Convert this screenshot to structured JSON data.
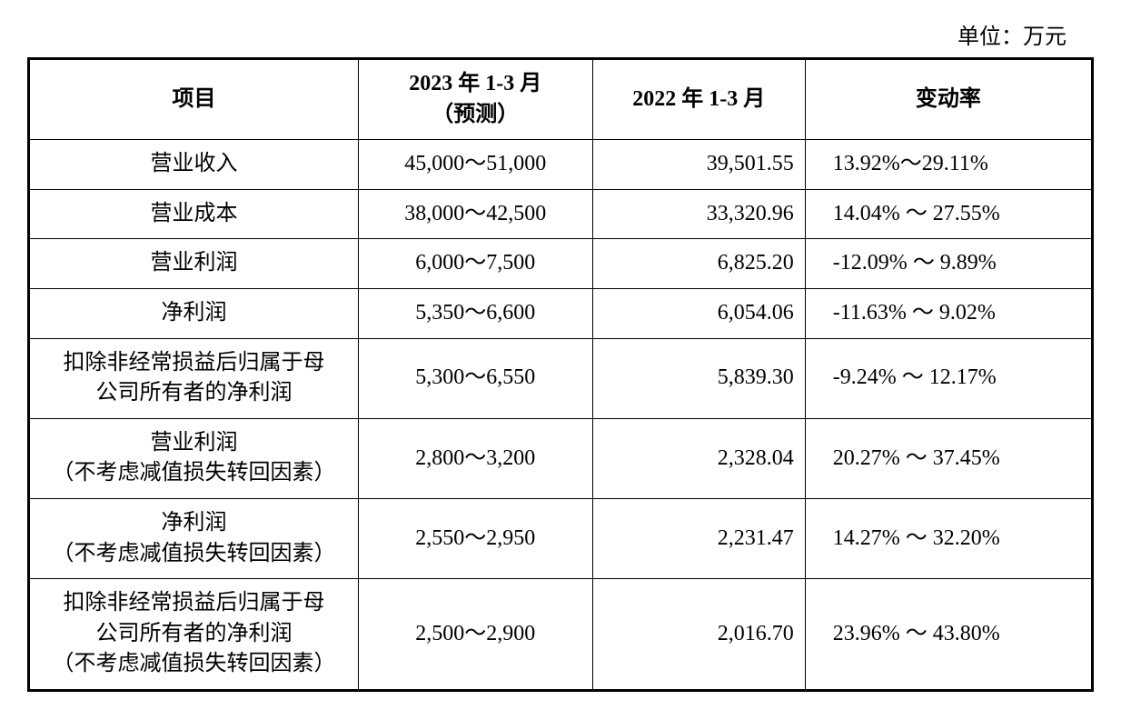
{
  "unit_label": "单位：万元",
  "table": {
    "type": "table",
    "background_color": "#ffffff",
    "border_color": "#000000",
    "outer_border_width": 3,
    "inner_border_width": 1,
    "font_size_pt": 18,
    "text_color": "#000000",
    "columns": [
      {
        "key": "item",
        "label": "项目",
        "align": "center",
        "width_pct": 31
      },
      {
        "key": "forecast",
        "label": "2023 年 1-3 月\n（预测）",
        "align": "center",
        "width_pct": 22
      },
      {
        "key": "prior",
        "label": "2022 年 1-3 月",
        "align": "right",
        "width_pct": 20
      },
      {
        "key": "change",
        "label": "变动率",
        "align": "left",
        "width_pct": 27
      }
    ],
    "rows": [
      {
        "item": "营业收入",
        "forecast": "45,000～51,000",
        "prior": "39,501.55",
        "change": "13.92%～29.11%"
      },
      {
        "item": "营业成本",
        "forecast": "38,000～42,500",
        "prior": "33,320.96",
        "change": "14.04% ～ 27.55%"
      },
      {
        "item": "营业利润",
        "forecast": "6,000～7,500",
        "prior": "6,825.20",
        "change": "-12.09% ～ 9.89%"
      },
      {
        "item": "净利润",
        "forecast": "5,350～6,600",
        "prior": "6,054.06",
        "change": "-11.63% ～ 9.02%"
      },
      {
        "item": "扣除非经常损益后归属于母\n公司所有者的净利润",
        "forecast": "5,300～6,550",
        "prior": "5,839.30",
        "change": "-9.24% ～ 12.17%"
      },
      {
        "item": "营业利润\n（不考虑减值损失转回因素）",
        "forecast": "2,800～3,200",
        "prior": "2,328.04",
        "change": "20.27% ～ 37.45%"
      },
      {
        "item": "净利润\n（不考虑减值损失转回因素）",
        "forecast": "2,550～2,950",
        "prior": "2,231.47",
        "change": "14.27% ～ 32.20%"
      },
      {
        "item": "扣除非经常损益后归属于母\n公司所有者的净利润\n（不考虑减值损失转回因素）",
        "forecast": "2,500～2,900",
        "prior": "2,016.70",
        "change": "23.96% ～ 43.80%"
      }
    ]
  }
}
